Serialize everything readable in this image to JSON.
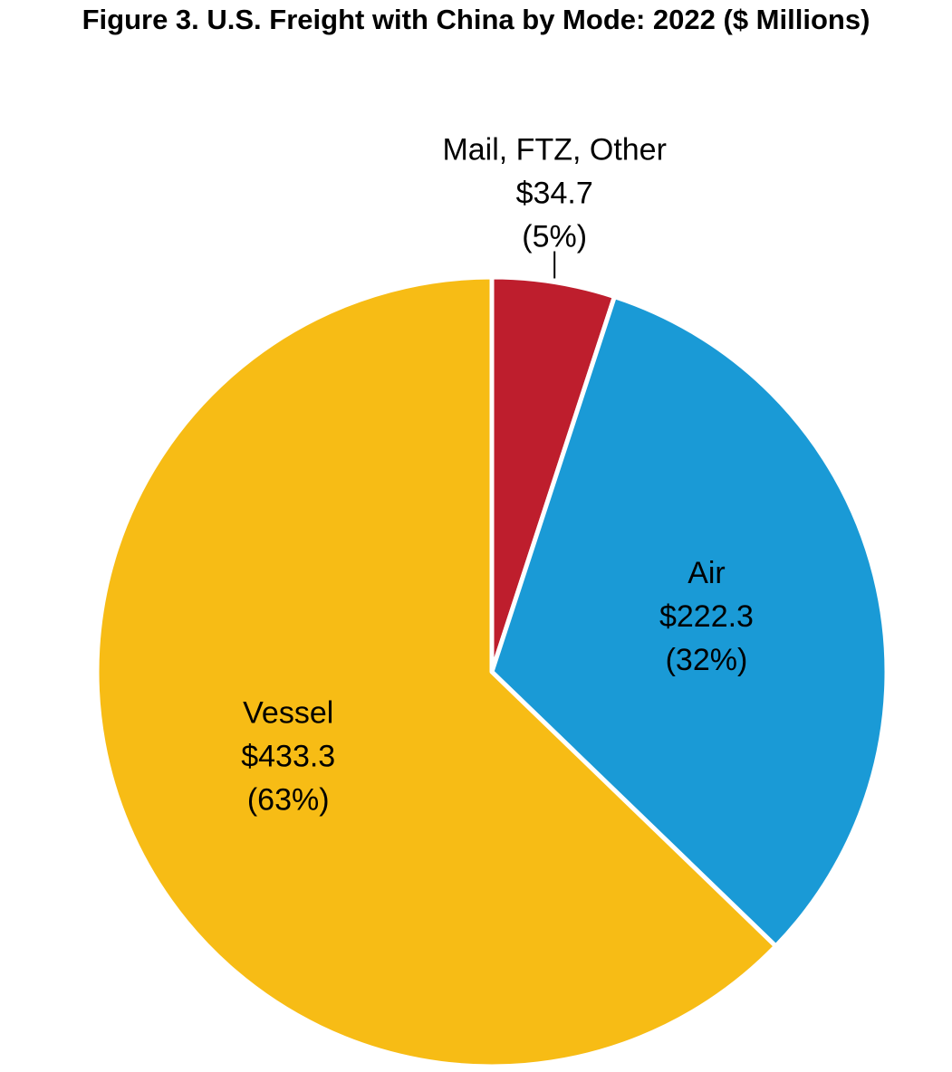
{
  "chart_data": {
    "type": "pie",
    "title": "Figure 3. U.S. Freight with China by Mode: 2022 ($ Millions)",
    "start_angle_deg": 0,
    "direction": "clockwise",
    "slices": [
      {
        "name": "Mail, FTZ, Other",
        "value": 34.7,
        "value_label": "$34.7",
        "percent_label": "(5%)",
        "color": "#BE1E2D",
        "label_position": "outside-top"
      },
      {
        "name": "Air",
        "value": 222.3,
        "value_label": "$222.3",
        "percent_label": "(32%)",
        "color": "#1A9AD6",
        "label_position": "inside"
      },
      {
        "name": "Vessel",
        "value": 433.3,
        "value_label": "$433.3",
        "percent_label": "(63%)",
        "color": "#F7BC15",
        "label_position": "inside"
      }
    ]
  }
}
